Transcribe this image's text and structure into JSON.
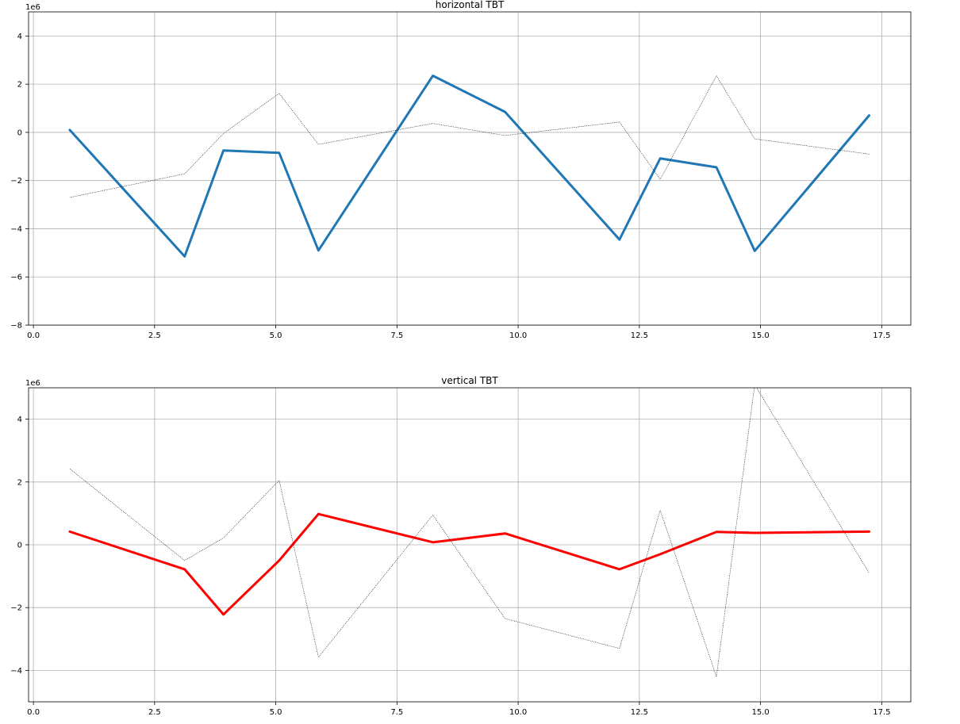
{
  "chart_data": [
    {
      "type": "line",
      "title": "horizontal TBT",
      "xlabel": "",
      "ylabel": "",
      "offset_text": "1e6",
      "xlim": [
        -0.1,
        18.1
      ],
      "ylim": [
        -8,
        5
      ],
      "xticks": [
        0.0,
        2.5,
        5.0,
        7.5,
        10.0,
        12.5,
        15.0,
        17.5
      ],
      "xtick_labels": [
        "0.0",
        "2.5",
        "5.0",
        "7.5",
        "10.0",
        "12.5",
        "15.0",
        "17.5"
      ],
      "yticks": [
        -8,
        -6,
        -4,
        -2,
        0,
        2,
        4
      ],
      "ytick_labels": [
        "−8",
        "−6",
        "−4",
        "−2",
        "0",
        "2",
        "4"
      ],
      "grid": true,
      "x": [
        0.75,
        3.12,
        3.92,
        5.07,
        5.88,
        8.24,
        9.73,
        12.09,
        12.93,
        14.09,
        14.88,
        17.24
      ],
      "series": [
        {
          "values": [
            0.1,
            -5.15,
            -0.75,
            -0.85,
            -4.9,
            2.35,
            0.85,
            -4.45,
            -1.08,
            -1.45,
            -4.92,
            0.7
          ],
          "color": "#1f77b4",
          "style": "solid-thick"
        },
        {
          "values": [
            -2.7,
            -1.72,
            -0.05,
            1.62,
            -0.5,
            0.37,
            -0.13,
            0.43,
            -1.95,
            2.35,
            -0.27,
            -0.9
          ],
          "color": "#000000",
          "style": "dotted-thin"
        }
      ]
    },
    {
      "type": "line",
      "title": "vertical TBT",
      "xlabel": "",
      "ylabel": "",
      "offset_text": "1e6",
      "xlim": [
        -0.1,
        18.1
      ],
      "ylim": [
        -5,
        5
      ],
      "xticks": [
        0.0,
        2.5,
        5.0,
        7.5,
        10.0,
        12.5,
        15.0,
        17.5
      ],
      "xtick_labels": [
        "0.0",
        "2.5",
        "5.0",
        "7.5",
        "10.0",
        "12.5",
        "15.0",
        "17.5"
      ],
      "yticks": [
        -4,
        -2,
        0,
        2,
        4
      ],
      "ytick_labels": [
        "−4",
        "−2",
        "0",
        "2",
        "4"
      ],
      "grid": true,
      "x": [
        0.75,
        3.12,
        3.92,
        5.07,
        5.88,
        8.24,
        9.73,
        12.09,
        12.93,
        14.09,
        14.88,
        17.24
      ],
      "series": [
        {
          "values": [
            0.42,
            -0.78,
            -2.22,
            -0.5,
            0.98,
            0.08,
            0.36,
            -0.78,
            -0.3,
            0.41,
            0.38,
            0.42
          ],
          "color": "#ff0000",
          "style": "solid-thick"
        },
        {
          "values": [
            2.42,
            -0.5,
            0.22,
            2.05,
            -3.58,
            0.95,
            -2.35,
            -3.3,
            1.1,
            -4.2,
            5.1,
            -0.9
          ],
          "color": "#000000",
          "style": "dotted-thin"
        }
      ]
    }
  ]
}
